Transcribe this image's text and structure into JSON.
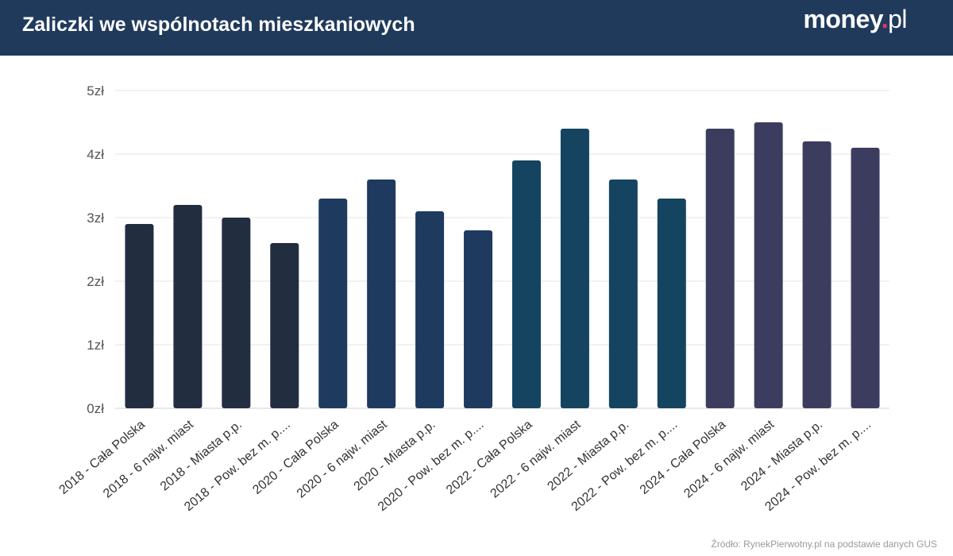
{
  "header": {
    "title": "Zaliczki we wspólnotach mieszkaniowych",
    "logo_main": "money",
    "logo_dot": ".",
    "logo_tld": "pl"
  },
  "source": "Źródło: RynekPierwotny.pl na podstawie danych GUS",
  "colors": {
    "header_bg": "#203a5c",
    "logo_dot": "#e8336d",
    "series_2018": "#222d40",
    "series_2020": "#1e3a5f",
    "series_2022": "#14445f",
    "series_2024": "#3c3d5e"
  },
  "chart_data": {
    "type": "bar",
    "title": "",
    "xlabel": "",
    "ylabel": "",
    "ylim": [
      0,
      5
    ],
    "y_ticks": [
      0,
      1,
      2,
      3,
      4,
      5
    ],
    "y_tick_labels": [
      "0zł",
      "1zł",
      "2zł",
      "3zł",
      "4zł",
      "5zł"
    ],
    "grid": true,
    "categories": [
      "2018 - Cała Polska",
      "2018 - 6 najw. miast",
      "2018 - Miasta p.p.",
      "2018 - Pow. bez m. p....",
      "2020 - Cała Polska",
      "2020 - 6 najw. miast",
      "2020 - Miasta p.p.",
      "2020 - Pow. bez m. p....",
      "2022 - Cała Polska",
      "2022 - 6 najw. miast",
      "2022 - Miasta p.p.",
      "2022 - Pow. bez m. p....",
      "2024 - Cała Polska",
      "2024 - 6 najw. miast",
      "2024 - Miasta p.p.",
      "2024 - Pow. bez m. p...."
    ],
    "values": [
      2.9,
      3.2,
      3.0,
      2.6,
      3.3,
      3.6,
      3.1,
      2.8,
      3.9,
      4.4,
      3.6,
      3.3,
      4.4,
      4.5,
      4.2,
      4.1
    ],
    "bar_color_keys": [
      "series_2018",
      "series_2018",
      "series_2018",
      "series_2018",
      "series_2020",
      "series_2020",
      "series_2020",
      "series_2020",
      "series_2022",
      "series_2022",
      "series_2022",
      "series_2022",
      "series_2024",
      "series_2024",
      "series_2024",
      "series_2024"
    ]
  }
}
